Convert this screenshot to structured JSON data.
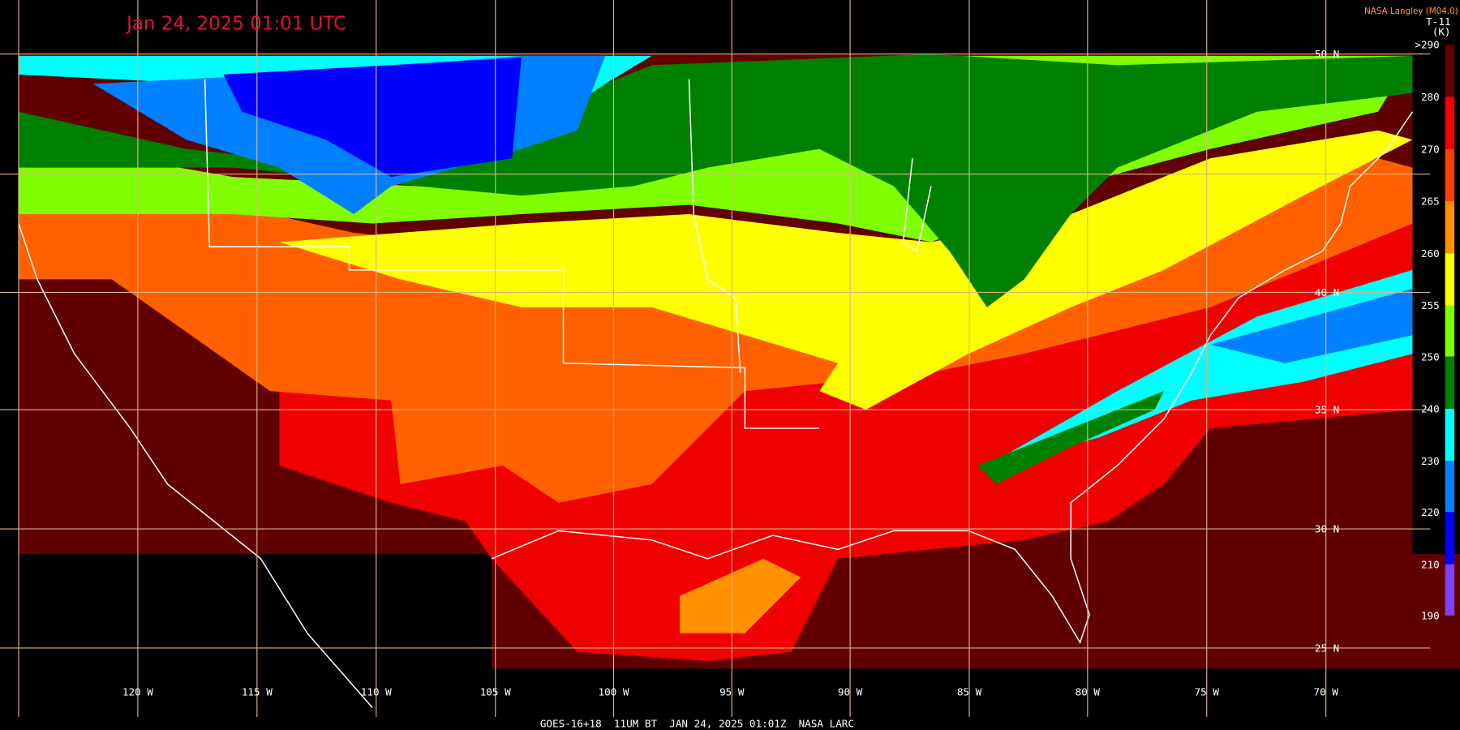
{
  "header": {
    "timestamp": "Jan 24, 2025 01:01 UTC",
    "credit": "NASA Langley (M04.0)",
    "product": "T-11",
    "unit": "(K)"
  },
  "colorbar": {
    "labels": [
      ">290",
      "280",
      "270",
      "265",
      "260",
      "255",
      "250",
      "240",
      "230",
      "220",
      "210",
      "190"
    ]
  },
  "lat_labels": [
    "50 N",
    "40 N",
    "35 N",
    "30 N",
    "25 N"
  ],
  "lon_labels": [
    "120 W",
    "115 W",
    "110 W",
    "105 W",
    "100 W",
    "95 W",
    "90 W",
    "85 W",
    "80 W",
    "75 W",
    "70 W"
  ],
  "footer": "GOES-16+18  11UM BT  JAN 24, 2025 01:01Z  NASA LARC"
}
